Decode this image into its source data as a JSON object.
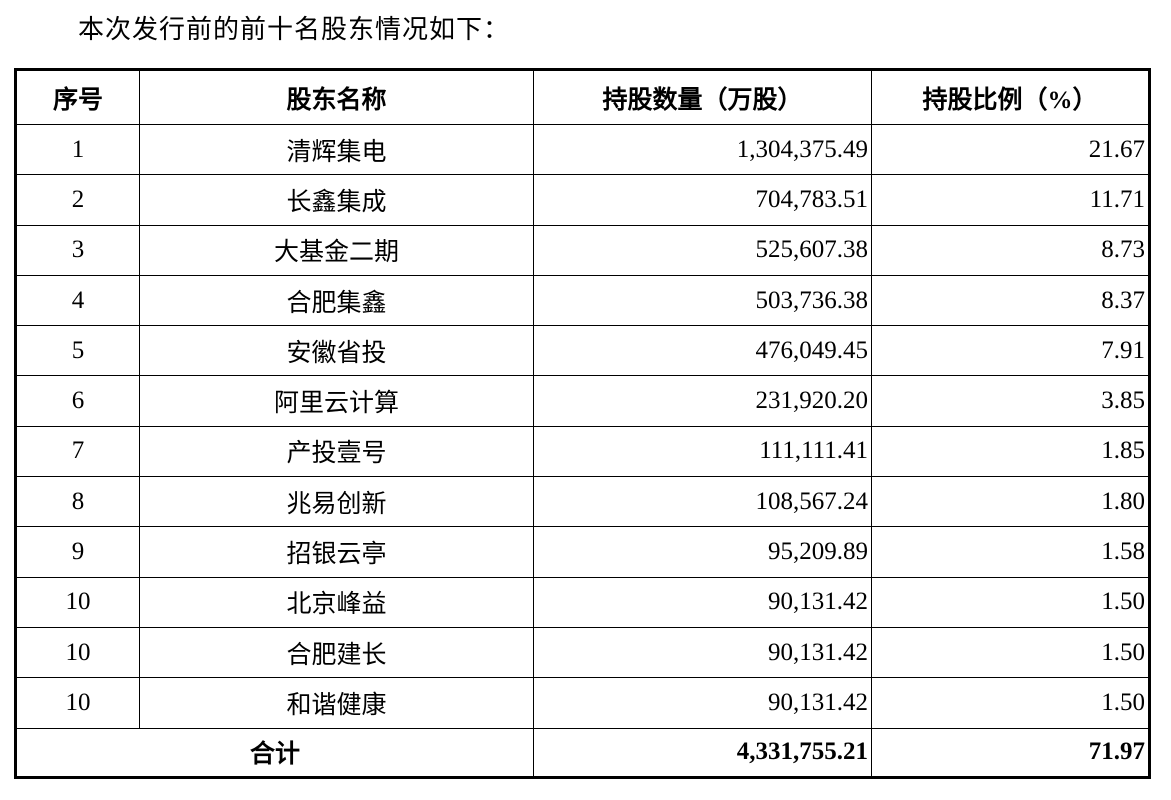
{
  "intro": "本次发行前的前十名股东情况如下：",
  "table": {
    "headers": [
      "序号",
      "股东名称",
      "持股数量（万股）",
      "持股比例（%）"
    ],
    "rows": [
      [
        "1",
        "清辉集电",
        "1,304,375.49",
        "21.67"
      ],
      [
        "2",
        "长鑫集成",
        "704,783.51",
        "11.71"
      ],
      [
        "3",
        "大基金二期",
        "525,607.38",
        "8.73"
      ],
      [
        "4",
        "合肥集鑫",
        "503,736.38",
        "8.37"
      ],
      [
        "5",
        "安徽省投",
        "476,049.45",
        "7.91"
      ],
      [
        "6",
        "阿里云计算",
        "231,920.20",
        "3.85"
      ],
      [
        "7",
        "产投壹号",
        "111,111.41",
        "1.85"
      ],
      [
        "8",
        "兆易创新",
        "108,567.24",
        "1.80"
      ],
      [
        "9",
        "招银云亭",
        "95,209.89",
        "1.58"
      ],
      [
        "10",
        "北京峰益",
        "90,131.42",
        "1.50"
      ],
      [
        "10",
        "合肥建长",
        "90,131.42",
        "1.50"
      ],
      [
        "10",
        "和谐健康",
        "90,131.42",
        "1.50"
      ]
    ],
    "total": {
      "label": "合计",
      "shares": "4,331,755.21",
      "percent": "71.97"
    }
  }
}
